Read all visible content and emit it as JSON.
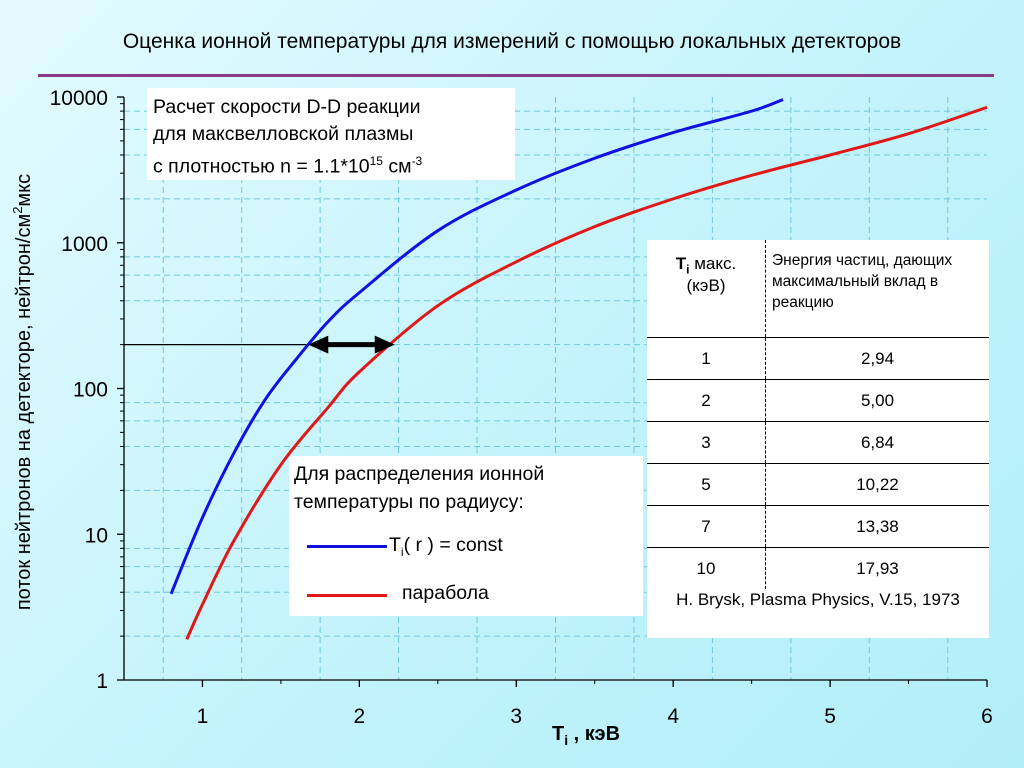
{
  "title": "Оценка ионной температуры для измерений с помощью локальных детекторов",
  "note": {
    "line1": "Расчет скорости D-D реакции",
    "line2": "для максвелловской плазмы",
    "line3_prefix": "с плотностью n = 1.1*10",
    "line3_exp": "15",
    "line3_unit": " см",
    "line3_unit_exp": "-3"
  },
  "legend": {
    "title_line1": "Для распределения ионной",
    "title_line2": "температуры по радиусу:",
    "entries": [
      {
        "prefix": "T",
        "sub": "i",
        "suffix": "( r ) = const",
        "color": "#1010e0"
      },
      {
        "prefix": "парабола",
        "sub": "",
        "suffix": "",
        "color": "#e01818"
      }
    ]
  },
  "table": {
    "header_col1_prefix": "T",
    "header_col1_sub": "i",
    "header_col1_suffix": " макс.",
    "header_col1_line2": "(кэВ)",
    "header_col2": "Энергия частиц, дающих максимальный вклад в реакцию",
    "rows": [
      [
        "1",
        "2,94"
      ],
      [
        "2",
        "5,00"
      ],
      [
        "3",
        "6,84"
      ],
      [
        "5",
        "10,22"
      ],
      [
        "7",
        "13,38"
      ],
      [
        "10",
        "17,93"
      ]
    ],
    "citation": "H. Brysk, Plasma Physics, V.15, 1973"
  },
  "chart_data": {
    "type": "line",
    "xlabel_main": "T",
    "xlabel_sub": "i",
    "xlabel_suffix": " , кэВ",
    "ylabel_main": "поток нейтронов на детекторе, нейтрон/см",
    "ylabel_sup": "2",
    "ylabel_suffix": "мкс",
    "x_range": [
      0.5,
      6
    ],
    "y_range": [
      1,
      10000
    ],
    "y_scale": "log",
    "x_ticks": [
      "1",
      "2",
      "3",
      "4",
      "5",
      "6"
    ],
    "y_ticks": [
      "1",
      "10",
      "100",
      "1000",
      "10000"
    ],
    "grid": "dashed vertical and horizontal at log minor ticks",
    "series": [
      {
        "color": "#1010e0",
        "x": [
          0.8,
          1.0,
          1.2,
          1.4,
          1.6,
          1.8,
          2.0,
          2.5,
          3.0,
          3.5,
          4.0,
          4.5,
          4.7
        ],
        "y": [
          3.9,
          13,
          36,
          84,
          160,
          287,
          455,
          1210,
          2300,
          3800,
          5700,
          8000,
          9600
        ]
      },
      {
        "color": "#e01818",
        "x": [
          0.9,
          1.0,
          1.2,
          1.5,
          1.8,
          2.0,
          2.5,
          3.0,
          3.5,
          4.0,
          4.5,
          5.0,
          5.5,
          6.0
        ],
        "y": [
          1.9,
          3.3,
          9,
          30,
          74,
          130,
          370,
          740,
          1290,
          2000,
          2900,
          4000,
          5600,
          8500
        ]
      }
    ],
    "annotation": {
      "horizontal_line_y": 200,
      "arrow_between_x": [
        1.7,
        2.2
      ]
    }
  }
}
